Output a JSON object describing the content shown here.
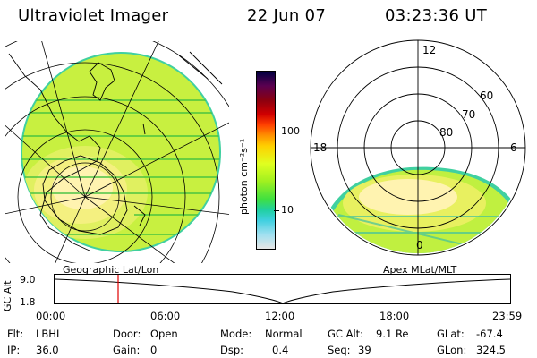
{
  "header": {
    "title": "Ultraviolet Imager",
    "date": "22 Jun 07",
    "time": "03:23:36 UT"
  },
  "left_map": {
    "label": "Geographic Lat/Lon"
  },
  "right_map": {
    "label": "Apex MLat/MLT",
    "mlt_labels": {
      "top": "12",
      "left": "18",
      "right": "6",
      "bottom": "0"
    },
    "lat_labels": [
      "60",
      "70",
      "80"
    ]
  },
  "colorbar": {
    "unit": "photon cm⁻²s⁻¹",
    "ticks": [
      "100",
      "10"
    ],
    "colors": [
      "#000040",
      "#5a0050",
      "#8a0010",
      "#d00000",
      "#ff4000",
      "#ff9000",
      "#ffd000",
      "#e0ff20",
      "#a0f020",
      "#40e040",
      "#20d0a0",
      "#40d0e0",
      "#a0e0f0",
      "#e6e6e6"
    ]
  },
  "altitude_plot": {
    "axis_label": "GC Alt",
    "y_ticks": [
      "9.0",
      "1.8"
    ],
    "x_ticks": [
      "00:00",
      "06:00",
      "12:00",
      "18:00",
      "23:59"
    ],
    "current_time_color": "#e00000"
  },
  "info": {
    "flt_label": "Flt:",
    "flt_value": "LBHL",
    "ip_label": "IP:",
    "ip_value": "36.0",
    "door_label": "Door:",
    "door_value": "Open",
    "gain_label": "Gain:",
    "gain_value": "0",
    "mode_label": "Mode:",
    "mode_value": "Normal",
    "dsp_label": "Dsp:",
    "dsp_value": "0.4",
    "gcalt_label": "GC Alt:",
    "gcalt_value": "9.1 Re",
    "seq_label": "Seq:",
    "seq_value": "39",
    "glat_label": "GLat:",
    "glat_value": "-67.4",
    "glon_label": "GLon:",
    "glon_value": "324.5"
  }
}
